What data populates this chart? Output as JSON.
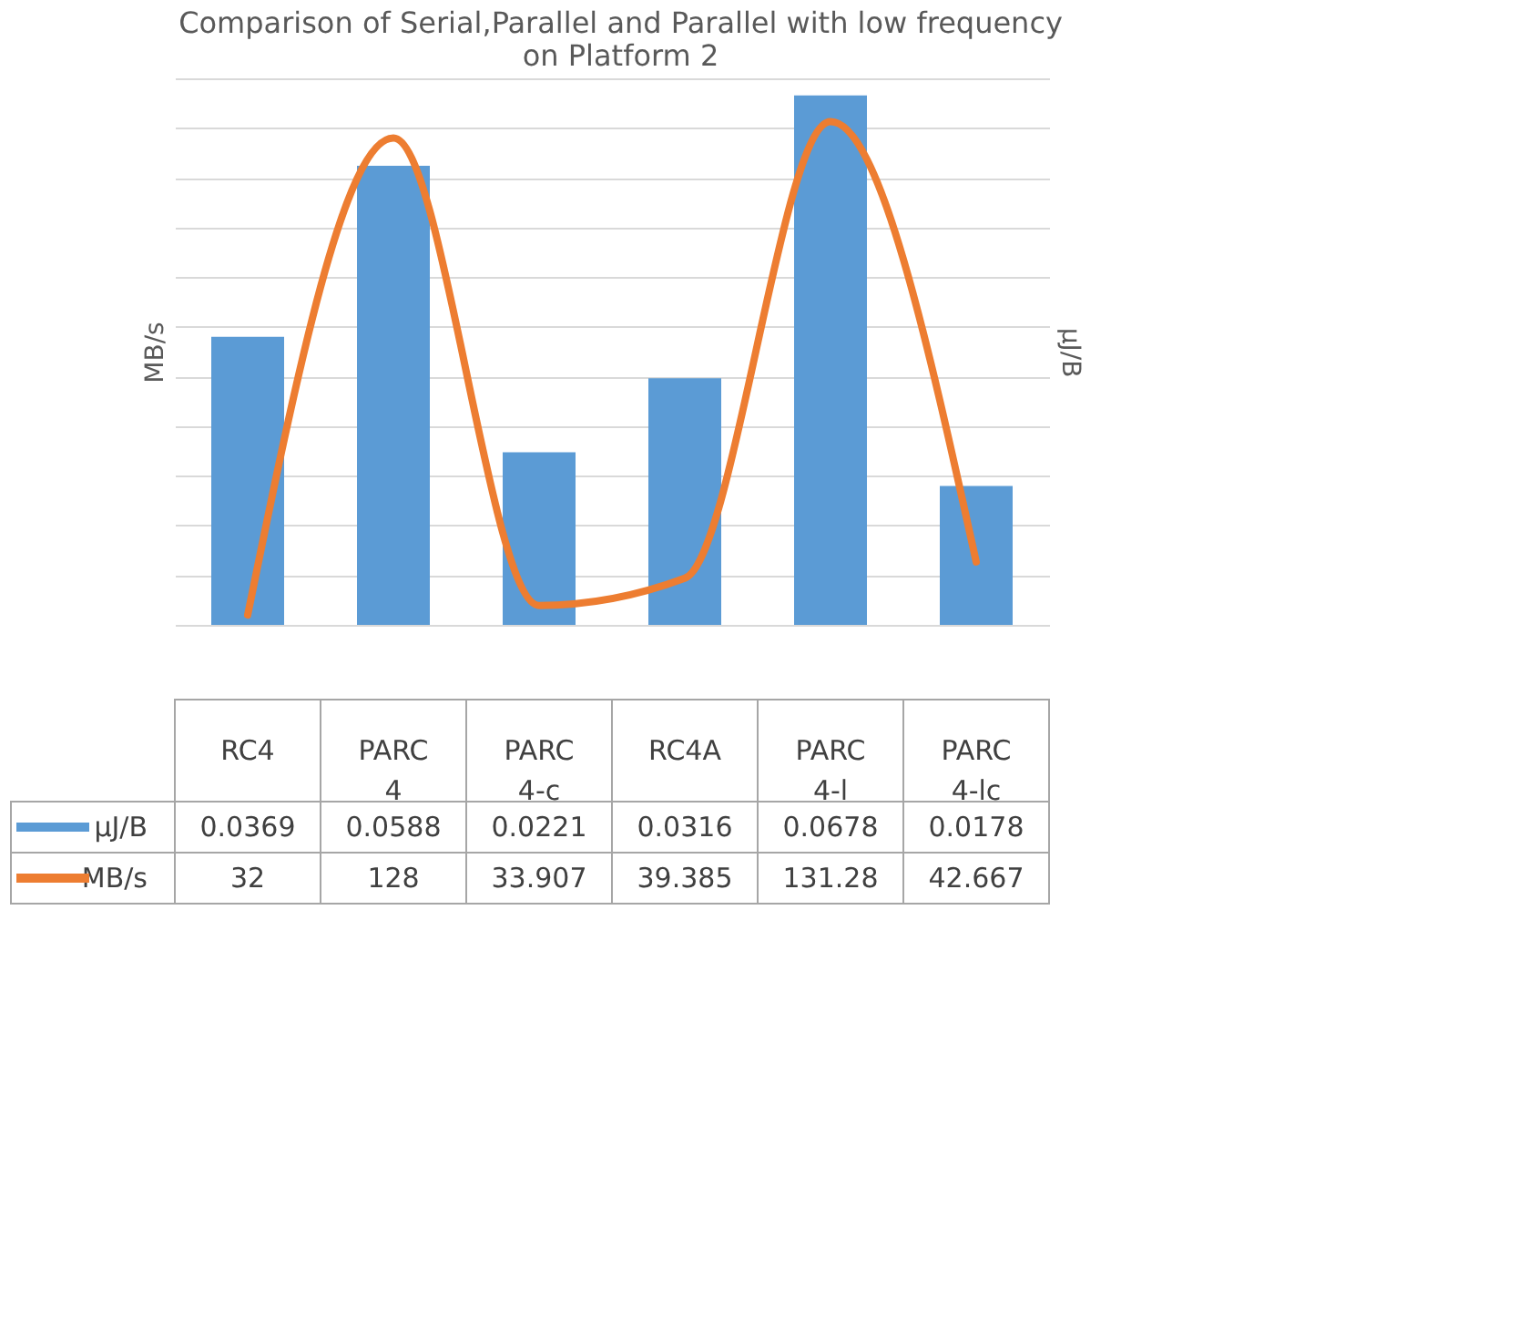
{
  "chart_data": {
    "type": "line",
    "title": [
      "Comparison of Serial,Parallel and Parallel with low frequency",
      "on Platform 2"
    ],
    "ylabel": "MB/s",
    "y2label": "μJ/B",
    "categories": [
      "RC4",
      "PARC 4",
      "PARC 4-c",
      "RC4A",
      "PARC 4-l",
      "PARC 4-lc"
    ],
    "series": [
      {
        "name": "μJ/B",
        "type": "bar",
        "axis": "y2",
        "color": "#5b9bd5",
        "values": [
          0.0369,
          0.0588,
          0.0221,
          0.0316,
          0.0678,
          0.0178
        ]
      },
      {
        "name": "MB/s",
        "color": "#ed7d31",
        "values": [
          32,
          128,
          33.907,
          39.385,
          131.28,
          42.667
        ]
      }
    ],
    "grid": "y",
    "tick_labels": false,
    "data_labels": true,
    "legend": "bottom"
  }
}
